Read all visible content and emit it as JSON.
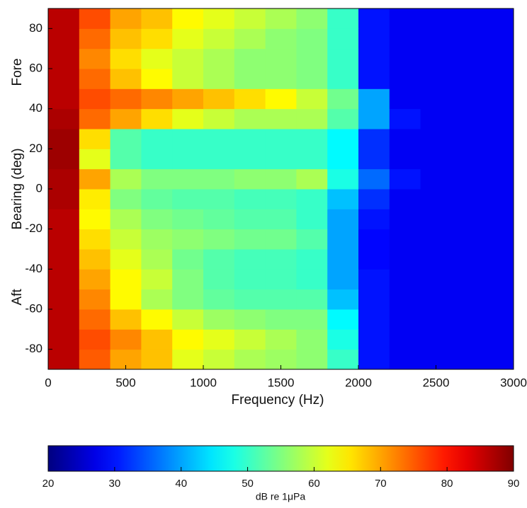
{
  "chart_data": {
    "type": "heatmap",
    "xlabel": "Frequency (Hz)",
    "ylabel": "Bearing (deg)",
    "annotations": [
      "Fore",
      "Aft"
    ],
    "xlim": [
      0,
      3000
    ],
    "xticks": [
      0,
      500,
      1000,
      1500,
      2000,
      2500,
      3000
    ],
    "ylim": [
      -90,
      90
    ],
    "yticks": [
      -80,
      -60,
      -40,
      -20,
      0,
      20,
      40,
      60,
      80
    ],
    "colormap": "jet",
    "x": [
      100,
      300,
      500,
      700,
      900,
      1100,
      1300,
      1500,
      1700,
      1900,
      2100,
      2300,
      2500,
      2700,
      2900
    ],
    "y": [
      -85,
      -75,
      -65,
      -55,
      -45,
      -35,
      -25,
      -15,
      -5,
      5,
      15,
      25,
      35,
      45,
      55,
      65,
      75,
      85
    ],
    "z": [
      [
        86,
        75,
        70,
        68,
        62,
        60,
        58,
        57,
        56,
        50,
        30,
        28,
        28,
        28,
        28
      ],
      [
        86,
        76,
        72,
        68,
        64,
        62,
        60,
        58,
        56,
        48,
        30,
        28,
        28,
        28,
        28
      ],
      [
        86,
        74,
        68,
        64,
        60,
        57,
        56,
        55,
        55,
        46,
        30,
        28,
        28,
        28,
        28
      ],
      [
        86,
        72,
        64,
        58,
        55,
        53,
        52,
        52,
        52,
        42,
        30,
        28,
        28,
        28,
        28
      ],
      [
        86,
        70,
        64,
        60,
        55,
        52,
        51,
        51,
        50,
        40,
        30,
        28,
        28,
        28,
        28
      ],
      [
        86,
        68,
        62,
        58,
        54,
        52,
        51,
        51,
        50,
        40,
        29,
        28,
        28,
        28,
        28
      ],
      [
        86,
        66,
        60,
        57,
        56,
        55,
        54,
        54,
        52,
        40,
        29,
        28,
        28,
        28,
        28
      ],
      [
        86,
        64,
        58,
        55,
        54,
        53,
        52,
        52,
        50,
        40,
        30,
        28,
        28,
        28,
        28
      ],
      [
        87,
        65,
        55,
        53,
        52,
        52,
        51,
        51,
        50,
        42,
        32,
        28,
        28,
        28,
        28
      ],
      [
        87,
        70,
        58,
        55,
        55,
        55,
        56,
        56,
        58,
        48,
        36,
        30,
        28,
        28,
        28
      ],
      [
        88,
        62,
        52,
        50,
        50,
        50,
        50,
        50,
        50,
        46,
        32,
        28,
        28,
        28,
        28
      ],
      [
        88,
        66,
        52,
        50,
        50,
        50,
        50,
        50,
        50,
        46,
        32,
        28,
        28,
        28,
        28
      ],
      [
        87,
        74,
        70,
        66,
        62,
        60,
        58,
        58,
        58,
        52,
        40,
        30,
        28,
        28,
        28
      ],
      [
        86,
        76,
        74,
        72,
        70,
        68,
        66,
        64,
        60,
        54,
        40,
        28,
        28,
        28,
        28
      ],
      [
        86,
        74,
        68,
        64,
        60,
        58,
        56,
        56,
        55,
        50,
        30,
        28,
        28,
        28,
        28
      ],
      [
        86,
        72,
        66,
        62,
        60,
        58,
        56,
        56,
        55,
        50,
        30,
        28,
        28,
        28,
        28
      ],
      [
        86,
        74,
        68,
        66,
        62,
        60,
        58,
        56,
        55,
        50,
        30,
        28,
        28,
        28,
        28
      ],
      [
        86,
        76,
        70,
        68,
        64,
        62,
        60,
        58,
        56,
        50,
        30,
        28,
        28,
        28,
        28
      ]
    ],
    "colorbar": {
      "label": "dB re 1μPa",
      "lim": [
        20,
        90
      ],
      "ticks": [
        20,
        30,
        40,
        50,
        60,
        70,
        80,
        90
      ]
    }
  }
}
